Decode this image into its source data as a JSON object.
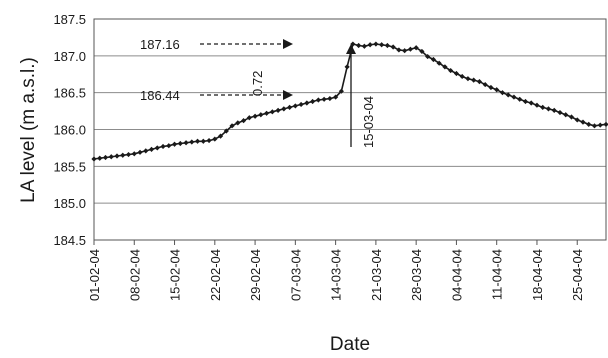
{
  "chart_data": {
    "type": "line",
    "title": "",
    "xlabel": "Date",
    "ylabel": "LA level (m a.s.l.)",
    "ylim": [
      184.5,
      187.5
    ],
    "yticks": [
      184.5,
      185.0,
      185.5,
      186.0,
      186.5,
      187.0,
      187.5
    ],
    "ytick_labels": [
      "184.5",
      "185.0",
      "185.5",
      "186.0",
      "186.5",
      "187.0",
      "187.5"
    ],
    "xlim": [
      "2004-02-01",
      "2004-04-30"
    ],
    "xtick_labels": [
      "01-02-04",
      "08-02-04",
      "15-02-04",
      "22-02-04",
      "29-02-04",
      "07-03-04",
      "14-03-04",
      "21-03-04",
      "28-03-04",
      "04-04-04",
      "11-04-04",
      "18-04-04",
      "25-04-04"
    ],
    "xtick_dates": [
      "2004-02-01",
      "2004-02-08",
      "2004-02-15",
      "2004-02-22",
      "2004-02-29",
      "2004-03-07",
      "2004-03-14",
      "2004-03-21",
      "2004-03-28",
      "2004-04-04",
      "2004-04-11",
      "2004-04-18",
      "2004-04-25"
    ],
    "grid": "horizontal",
    "legend": "none",
    "series": [
      {
        "color": "#1a1a1a",
        "marker": "diamond",
        "x": [
          "2004-02-01",
          "2004-02-02",
          "2004-02-03",
          "2004-02-04",
          "2004-02-05",
          "2004-02-06",
          "2004-02-07",
          "2004-02-08",
          "2004-02-09",
          "2004-02-10",
          "2004-02-11",
          "2004-02-12",
          "2004-02-13",
          "2004-02-14",
          "2004-02-15",
          "2004-02-16",
          "2004-02-17",
          "2004-02-18",
          "2004-02-19",
          "2004-02-20",
          "2004-02-21",
          "2004-02-22",
          "2004-02-23",
          "2004-02-24",
          "2004-02-25",
          "2004-02-26",
          "2004-02-27",
          "2004-02-28",
          "2004-02-29",
          "2004-03-01",
          "2004-03-02",
          "2004-03-03",
          "2004-03-04",
          "2004-03-05",
          "2004-03-06",
          "2004-03-07",
          "2004-03-08",
          "2004-03-09",
          "2004-03-10",
          "2004-03-11",
          "2004-03-12",
          "2004-03-13",
          "2004-03-14",
          "2004-03-15",
          "2004-03-16",
          "2004-03-17",
          "2004-03-18",
          "2004-03-19",
          "2004-03-20",
          "2004-03-21",
          "2004-03-22",
          "2004-03-23",
          "2004-03-24",
          "2004-03-25",
          "2004-03-26",
          "2004-03-27",
          "2004-03-28",
          "2004-03-29",
          "2004-03-30",
          "2004-03-31",
          "2004-04-01",
          "2004-04-02",
          "2004-04-03",
          "2004-04-04",
          "2004-04-05",
          "2004-04-06",
          "2004-04-07",
          "2004-04-08",
          "2004-04-09",
          "2004-04-10",
          "2004-04-11",
          "2004-04-12",
          "2004-04-13",
          "2004-04-14",
          "2004-04-15",
          "2004-04-16",
          "2004-04-17",
          "2004-04-18",
          "2004-04-19",
          "2004-04-20",
          "2004-04-21",
          "2004-04-22",
          "2004-04-23",
          "2004-04-24",
          "2004-04-25",
          "2004-04-26",
          "2004-04-27",
          "2004-04-28",
          "2004-04-29",
          "2004-04-30"
        ],
        "y": [
          185.6,
          185.61,
          185.62,
          185.63,
          185.64,
          185.65,
          185.66,
          185.67,
          185.69,
          185.71,
          185.73,
          185.75,
          185.77,
          185.78,
          185.8,
          185.81,
          185.82,
          185.83,
          185.84,
          185.84,
          185.85,
          185.87,
          185.91,
          185.98,
          186.05,
          186.09,
          186.12,
          186.16,
          186.18,
          186.2,
          186.22,
          186.24,
          186.26,
          186.28,
          186.3,
          186.32,
          186.34,
          186.36,
          186.38,
          186.4,
          186.41,
          186.42,
          186.44,
          186.52,
          186.85,
          187.16,
          187.14,
          187.13,
          187.15,
          187.16,
          187.15,
          187.14,
          187.12,
          187.08,
          187.07,
          187.09,
          187.11,
          187.06,
          186.99,
          186.95,
          186.9,
          186.85,
          186.8,
          186.76,
          186.72,
          186.69,
          186.67,
          186.65,
          186.61,
          186.57,
          186.54,
          186.5,
          186.47,
          186.44,
          186.41,
          186.38,
          186.36,
          186.33,
          186.3,
          186.28,
          186.26,
          186.23,
          186.2,
          186.17,
          186.13,
          186.1,
          186.07,
          186.05,
          186.06,
          186.07
        ]
      }
    ],
    "annotations": [
      {
        "text": "187.16",
        "value": 187.16,
        "arrow": "right"
      },
      {
        "text": "186.44",
        "value": 186.44,
        "arrow": "right"
      },
      {
        "text": "0.72",
        "orientation": "vertical"
      },
      {
        "text": "15-03-04",
        "orientation": "vertical",
        "date": "2004-03-15"
      }
    ]
  }
}
